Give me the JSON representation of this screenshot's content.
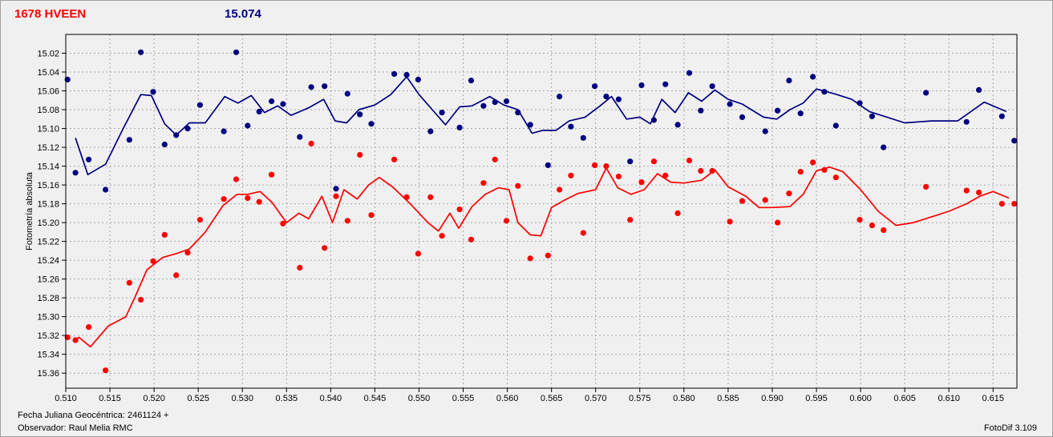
{
  "header": {
    "title": "1678 HVEEN",
    "value": "15.074"
  },
  "footer": {
    "jd_label": "Fecha Juliana Geocéntrica: 2461124 +",
    "observer": "Observador: Raul Melia RMC",
    "software": "FotoDif 3.109"
  },
  "colors": {
    "series_a": "#000080",
    "series_b": "#ff0000",
    "title": "#ff0000",
    "value": "#000080"
  },
  "chart_data": {
    "type": "scatter",
    "title": "",
    "xlabel": "",
    "ylabel": "Fotometría absoluta",
    "xlim": [
      0.51,
      0.6177
    ],
    "ylim": [
      15.0,
      15.376
    ],
    "y_inverted": true,
    "grid": true,
    "x_ticks": [
      "0.510",
      "0.515",
      "0.520",
      "0.525",
      "0.530",
      "0.535",
      "0.540",
      "0.545",
      "0.550",
      "0.555",
      "0.560",
      "0.565",
      "0.570",
      "0.575",
      "0.580",
      "0.585",
      "0.590",
      "0.595",
      "0.600",
      "0.605",
      "0.610",
      "0.615"
    ],
    "y_ticks": [
      "15.02",
      "15.04",
      "15.06",
      "15.08",
      "15.10",
      "15.12",
      "15.14",
      "15.16",
      "15.18",
      "15.20",
      "15.22",
      "15.24",
      "15.26",
      "15.28",
      "15.30",
      "15.32",
      "15.34",
      "15.36"
    ],
    "series": [
      {
        "color": "#000080",
        "points_x": [
          0.5102,
          0.5111,
          0.5126,
          0.5145,
          0.5172,
          0.5185,
          0.5199,
          0.5212,
          0.5225,
          0.5238,
          0.5252,
          0.5279,
          0.5293,
          0.5306,
          0.5319,
          0.5333,
          0.5346,
          0.5365,
          0.5378,
          0.5393,
          0.5406,
          0.5419,
          0.5433,
          0.5446,
          0.5472,
          0.5486,
          0.5499,
          0.5513,
          0.5526,
          0.5546,
          0.5559,
          0.5573,
          0.5586,
          0.5599,
          0.5612,
          0.5626,
          0.5646,
          0.5659,
          0.5672,
          0.5686,
          0.5699,
          0.5712,
          0.5726,
          0.5739,
          0.5752,
          0.5766,
          0.5779,
          0.5793,
          0.5806,
          0.5819,
          0.5832,
          0.5852,
          0.5866,
          0.5892,
          0.5906,
          0.5919,
          0.5932,
          0.5946,
          0.5959,
          0.5972,
          0.5999,
          0.6013,
          0.6026,
          0.6074,
          0.612,
          0.6134,
          0.616,
          0.6174
        ],
        "points_y": [
          15.048,
          15.147,
          15.133,
          15.165,
          15.112,
          15.019,
          15.061,
          15.117,
          15.107,
          15.1,
          15.075,
          15.103,
          15.019,
          15.097,
          15.082,
          15.071,
          15.074,
          15.109,
          15.056,
          15.055,
          15.164,
          15.063,
          15.085,
          15.095,
          15.042,
          15.043,
          15.048,
          15.103,
          15.083,
          15.099,
          15.049,
          15.076,
          15.072,
          15.071,
          15.083,
          15.096,
          15.139,
          15.066,
          15.098,
          15.11,
          15.055,
          15.066,
          15.069,
          15.135,
          15.054,
          15.091,
          15.053,
          15.096,
          15.041,
          15.081,
          15.055,
          15.074,
          15.088,
          15.103,
          15.081,
          15.049,
          15.084,
          15.045,
          15.061,
          15.097,
          15.073,
          15.087,
          15.12,
          15.062,
          15.093,
          15.059,
          15.087,
          15.113
        ],
        "line_x": [
          0.5111,
          0.5125,
          0.5145,
          0.5165,
          0.5185,
          0.5197,
          0.5212,
          0.5225,
          0.524,
          0.5258,
          0.528,
          0.5295,
          0.531,
          0.5325,
          0.534,
          0.5355,
          0.5375,
          0.5392,
          0.5405,
          0.5418,
          0.5432,
          0.545,
          0.5468,
          0.5486,
          0.55,
          0.5515,
          0.553,
          0.5546,
          0.556,
          0.558,
          0.5596,
          0.5612,
          0.5628,
          0.564,
          0.5655,
          0.567,
          0.5688,
          0.5705,
          0.5718,
          0.5735,
          0.575,
          0.5762,
          0.5775,
          0.579,
          0.5805,
          0.582,
          0.5835,
          0.585,
          0.5866,
          0.589,
          0.5905,
          0.592,
          0.5935,
          0.595,
          0.597,
          0.599,
          0.601,
          0.603,
          0.605,
          0.608,
          0.611,
          0.614,
          0.6165
        ],
        "line_y": [
          15.11,
          15.149,
          15.138,
          15.1,
          15.064,
          15.065,
          15.095,
          15.107,
          15.094,
          15.094,
          15.066,
          15.073,
          15.065,
          15.083,
          15.076,
          15.086,
          15.078,
          15.069,
          15.092,
          15.094,
          15.08,
          15.075,
          15.064,
          15.045,
          15.064,
          15.08,
          15.096,
          15.077,
          15.076,
          15.066,
          15.075,
          15.08,
          15.105,
          15.102,
          15.102,
          15.092,
          15.088,
          15.076,
          15.066,
          15.09,
          15.088,
          15.095,
          15.069,
          15.083,
          15.062,
          15.071,
          15.059,
          15.069,
          15.074,
          15.088,
          15.09,
          15.08,
          15.073,
          15.058,
          15.063,
          15.069,
          15.082,
          15.088,
          15.094,
          15.092,
          15.092,
          15.072,
          15.082
        ]
      },
      {
        "color": "#ff0000",
        "points_x": [
          0.5102,
          0.5111,
          0.5126,
          0.5145,
          0.5172,
          0.5185,
          0.5199,
          0.5212,
          0.5225,
          0.5238,
          0.5252,
          0.5279,
          0.5293,
          0.5306,
          0.5319,
          0.5333,
          0.5346,
          0.5365,
          0.5378,
          0.5393,
          0.5406,
          0.5419,
          0.5433,
          0.5446,
          0.5472,
          0.5486,
          0.5499,
          0.5513,
          0.5526,
          0.5546,
          0.5559,
          0.5573,
          0.5586,
          0.5599,
          0.5612,
          0.5626,
          0.5646,
          0.5659,
          0.5672,
          0.5686,
          0.5699,
          0.5712,
          0.5726,
          0.5739,
          0.5752,
          0.5766,
          0.5779,
          0.5793,
          0.5806,
          0.5819,
          0.5832,
          0.5852,
          0.5866,
          0.5892,
          0.5906,
          0.5919,
          0.5932,
          0.5946,
          0.5959,
          0.5972,
          0.5999,
          0.6013,
          0.6026,
          0.6074,
          0.612,
          0.6134,
          0.616,
          0.6174
        ],
        "points_y": [
          15.322,
          15.325,
          15.311,
          15.357,
          15.264,
          15.282,
          15.241,
          15.213,
          15.256,
          15.232,
          15.197,
          15.175,
          15.154,
          15.174,
          15.178,
          15.149,
          15.201,
          15.248,
          15.116,
          15.227,
          15.172,
          15.198,
          15.128,
          15.192,
          15.133,
          15.173,
          15.233,
          15.173,
          15.214,
          15.186,
          15.218,
          15.158,
          15.133,
          15.198,
          15.161,
          15.238,
          15.235,
          15.165,
          15.15,
          15.211,
          15.139,
          15.14,
          15.151,
          15.197,
          15.157,
          15.135,
          15.15,
          15.19,
          15.134,
          15.145,
          15.145,
          15.199,
          15.177,
          15.176,
          15.2,
          15.169,
          15.146,
          15.136,
          15.144,
          15.152,
          15.197,
          15.203,
          15.208,
          15.162,
          15.166,
          15.168,
          15.18,
          15.18
        ],
        "line_x": [
          0.5108,
          0.5115,
          0.5128,
          0.5148,
          0.5168,
          0.5178,
          0.5192,
          0.521,
          0.5225,
          0.524,
          0.5258,
          0.5278,
          0.5294,
          0.5306,
          0.532,
          0.5333,
          0.535,
          0.5364,
          0.5375,
          0.539,
          0.5402,
          0.5415,
          0.543,
          0.5443,
          0.5455,
          0.547,
          0.549,
          0.551,
          0.5522,
          0.5535,
          0.5545,
          0.556,
          0.5575,
          0.559,
          0.5602,
          0.5612,
          0.5626,
          0.5638,
          0.565,
          0.5665,
          0.568,
          0.57,
          0.5712,
          0.5725,
          0.574,
          0.5755,
          0.577,
          0.5785,
          0.58,
          0.582,
          0.5835,
          0.585,
          0.587,
          0.5885,
          0.59,
          0.592,
          0.5935,
          0.595,
          0.5965,
          0.598,
          0.6,
          0.602,
          0.604,
          0.606,
          0.608,
          0.61,
          0.612,
          0.6135,
          0.615,
          0.6168
        ],
        "line_y": [
          15.326,
          15.322,
          15.332,
          15.31,
          15.3,
          15.28,
          15.25,
          15.237,
          15.233,
          15.228,
          15.21,
          15.182,
          15.17,
          15.17,
          15.167,
          15.178,
          15.2,
          15.19,
          15.196,
          15.172,
          15.2,
          15.165,
          15.175,
          15.16,
          15.152,
          15.162,
          15.18,
          15.2,
          15.209,
          15.19,
          15.206,
          15.183,
          15.17,
          15.163,
          15.165,
          15.2,
          15.213,
          15.214,
          15.184,
          15.176,
          15.169,
          15.165,
          15.142,
          15.163,
          15.17,
          15.165,
          15.148,
          15.157,
          15.158,
          15.155,
          15.144,
          15.162,
          15.172,
          15.184,
          15.184,
          15.183,
          15.17,
          15.145,
          15.141,
          15.146,
          15.165,
          15.188,
          15.203,
          15.2,
          15.194,
          15.188,
          15.18,
          15.172,
          15.167,
          15.174
        ]
      }
    ]
  }
}
